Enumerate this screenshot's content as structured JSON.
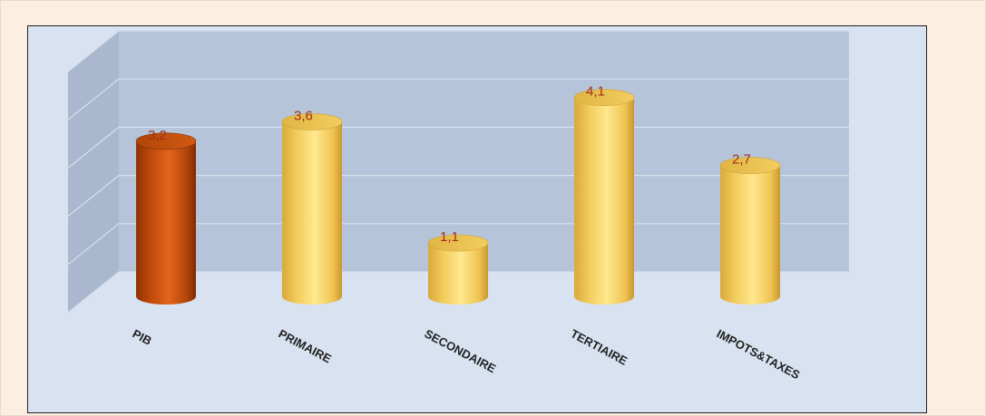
{
  "chart_data": {
    "type": "bar",
    "categories": [
      "PIB",
      "PRIMAIRE",
      "SECONDAIRE",
      "TERTIAIRE",
      "IMPOTS&TAXES"
    ],
    "values": [
      3.2,
      3.6,
      1.1,
      4.1,
      2.7
    ],
    "value_labels": [
      "3,2",
      "3,6",
      "1,1",
      "4,1",
      "2,7"
    ],
    "title": "",
    "xlabel": "",
    "ylabel": "",
    "ylim": [
      0,
      5
    ],
    "grid": true,
    "legend": "none",
    "style": "3d-cylinder",
    "colors": {
      "highlight": "#d4570f",
      "default": "#f6cf55",
      "label": "#a0301a",
      "back_wall": "#b6c4d9",
      "side_wall": "#a9b8ce",
      "panel": "#d9e2f1",
      "page": "#fdeee2"
    },
    "highlight_index": 0
  }
}
